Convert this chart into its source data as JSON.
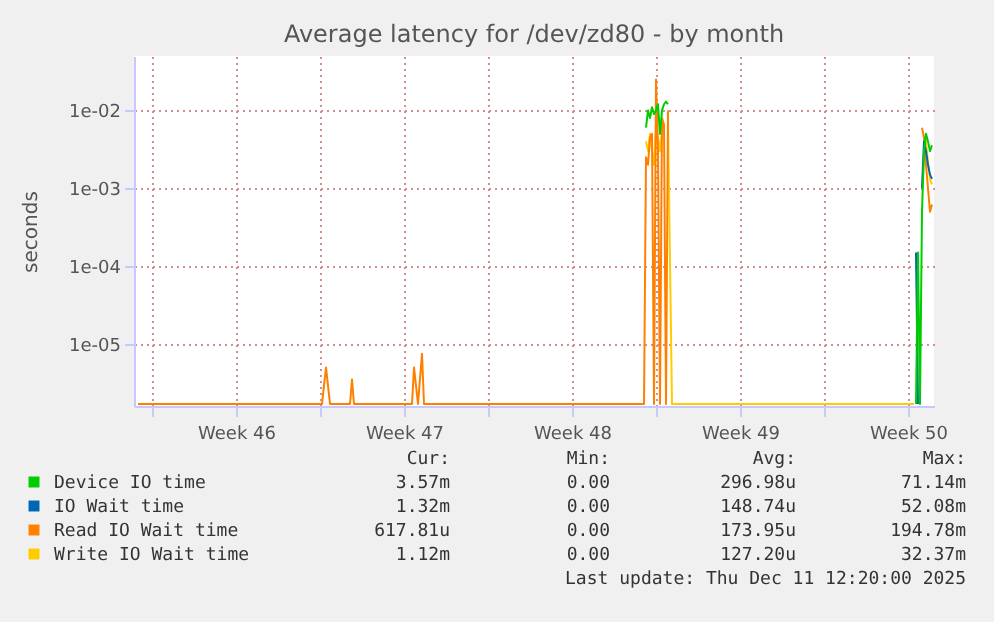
{
  "chart_data": {
    "type": "line",
    "title": "Average latency for /dev/zd80 - by month",
    "ylabel": "seconds",
    "x": [
      "2025-11-08T10:00",
      "2025-11-16T02:00",
      "2025-11-16T06:00",
      "2025-11-16T10:00",
      "2025-11-17T06:00",
      "2025-11-17T08:00",
      "2025-11-17T10:00",
      "2025-11-19T20:00",
      "2025-11-19T22:00",
      "2025-11-20T02:00",
      "2025-11-20T06:00",
      "2025-11-20T08:00",
      "2025-11-29T12:00",
      "2025-11-29T14:00",
      "2025-11-29T16:00",
      "2025-11-29T18:00",
      "2025-11-29T20:00",
      "2025-11-29T22:00",
      "2025-11-30T00:00",
      "2025-11-30T02:00",
      "2025-11-30T04:00",
      "2025-11-30T06:00",
      "2025-11-30T08:00",
      "2025-11-30T10:00",
      "2025-11-30T12:00",
      "2025-11-30T16:00",
      "2025-12-10T18:00",
      "2025-12-10T20:00",
      "2025-12-10T22:00",
      "2025-12-11T00:00",
      "2025-12-11T02:00",
      "2025-12-11T04:00",
      "2025-12-11T06:00",
      "2025-12-11T08:00",
      "2025-12-11T10:00",
      "2025-12-11T12:00"
    ],
    "series": [
      {
        "name": "Device IO time",
        "color": "#00cc00",
        "values": [
          null,
          null,
          null,
          null,
          null,
          null,
          null,
          null,
          null,
          null,
          null,
          null,
          null,
          0.006,
          0.01,
          0.008,
          0.011,
          0.009,
          0.01,
          0.012,
          0.005,
          0.01,
          0.012,
          0.013,
          0.012,
          null,
          null,
          1.7e-06,
          0.00015,
          1.7e-06,
          0.0005,
          0.003,
          0.005,
          0.004,
          0.003,
          0.00357
        ]
      },
      {
        "name": "IO Wait time",
        "color": "#0066b3",
        "values": [
          null,
          null,
          null,
          null,
          null,
          null,
          null,
          null,
          null,
          null,
          null,
          null,
          null,
          null,
          null,
          null,
          null,
          null,
          null,
          null,
          null,
          null,
          null,
          null,
          null,
          null,
          null,
          0.00015,
          1.7e-06,
          null,
          0.001,
          0.004,
          0.003,
          0.002,
          0.0015,
          0.00132
        ]
      },
      {
        "name": "Read IO Wait time",
        "color": "#ff8000",
        "values": [
          1.7e-06,
          1.7e-06,
          5e-06,
          1.7e-06,
          1.7e-06,
          3.5e-06,
          1.7e-06,
          1.7e-06,
          5e-06,
          1.7e-06,
          7.5e-06,
          1.7e-06,
          1.7e-06,
          0.0025,
          0.002,
          0.0045,
          0.005,
          1.7e-06,
          0.025,
          0.003,
          1.7e-06,
          0.008,
          0.0065,
          1.7e-06,
          0.01,
          null,
          null,
          null,
          null,
          null,
          0.006,
          0.0045,
          0.002,
          0.001,
          0.0005,
          0.00062
        ]
      },
      {
        "name": "Write IO Wait time",
        "color": "#ffcc00",
        "values": [
          null,
          null,
          null,
          null,
          null,
          null,
          null,
          null,
          null,
          null,
          null,
          null,
          null,
          0.004,
          0.003,
          0.005,
          0.003,
          0.002,
          0.006,
          0.0045,
          0.003,
          0.0055,
          0.007,
          null,
          0.008,
          1.7e-06,
          1.7e-06,
          null,
          null,
          null,
          0.001,
          0.0025,
          0.004,
          0.0022,
          0.0013,
          0.00112
        ]
      }
    ],
    "xlim": [
      "2025-11-08T06:00",
      "2025-12-11T14:00"
    ],
    "xticks": [
      {
        "value": "2025-11-09T00:00",
        "label": null
      },
      {
        "value": "2025-11-12T12:00",
        "label": "Week 46"
      },
      {
        "value": "2025-11-16T00:00",
        "label": null
      },
      {
        "value": "2025-11-19T12:00",
        "label": "Week 47"
      },
      {
        "value": "2025-11-23T00:00",
        "label": null
      },
      {
        "value": "2025-11-26T12:00",
        "label": "Week 48"
      },
      {
        "value": "2025-11-30T00:00",
        "label": null
      },
      {
        "value": "2025-12-03T12:00",
        "label": "Week 49"
      },
      {
        "value": "2025-12-07T00:00",
        "label": null
      },
      {
        "value": "2025-12-10T12:00",
        "label": "Week 50"
      }
    ],
    "log": true,
    "ylim": [
      1.6e-06,
      0.05
    ],
    "yticks": [
      {
        "value": 1e-05,
        "label": "1e-05"
      },
      {
        "value": 0.0001,
        "label": "1e-04"
      },
      {
        "value": 0.001,
        "label": "1e-03"
      },
      {
        "value": 0.01,
        "label": "1e-02"
      }
    ],
    "grid": true,
    "legend": "bottom",
    "annotations": [
      "Cur:",
      "Min:",
      "Avg:",
      "Max:",
      "3.57m",
      "0.00",
      "296.98u",
      "71.14m",
      "1.32m",
      "0.00",
      "148.74u",
      "52.08m",
      "617.81u",
      "0.00",
      "173.95u",
      "194.78m",
      "1.12m",
      "0.00",
      "127.20u",
      "32.37m",
      "Last update: Thu Dec 11 12:20:00 2025"
    ]
  }
}
